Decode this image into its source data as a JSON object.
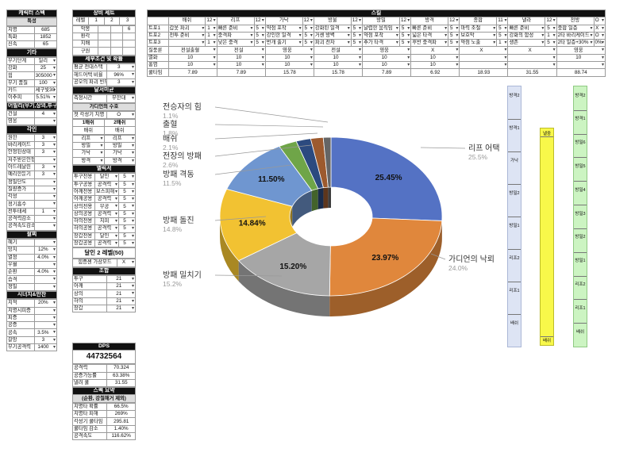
{
  "left": {
    "char_title": "캐릭터 스텍",
    "stat_title": "특성",
    "stats": [
      [
        "치명",
        "685"
      ],
      [
        "특화",
        "1852"
      ],
      [
        "신속",
        "65"
      ]
    ],
    "etc_title": "기타",
    "etc": [
      [
        "무기단계",
        "일리"
      ],
      [
        "강화",
        "25"
      ],
      [
        "힘",
        "305000"
      ],
      [
        "무기 품질",
        "100"
      ],
      [
        "카드",
        "세구빛30"
      ],
      [
        "이추피",
        "5.51%"
      ]
    ],
    "abil_title": "어빌리(무기,상의,투구)",
    "abil": [
      [
        "건설",
        "4"
      ],
      [
        "영웅",
        ""
      ]
    ],
    "engr_title": "각인",
    "engr": [
      [
        "원한",
        "3"
      ],
      [
        "바리케이드",
        "3"
      ],
      [
        "안정된상태",
        "3"
      ],
      [
        "저주받은인형",
        ""
      ],
      [
        "아드레날린",
        "3"
      ],
      [
        "예리한둔기",
        "3"
      ],
      [
        "정밀단도",
        ""
      ],
      [
        "질량증가",
        ""
      ],
      [
        "각성",
        ""
      ],
      [
        "정기흡수",
        ""
      ],
      [
        "전투태세",
        "1"
      ],
      [
        "공격력감소",
        ""
      ],
      [
        "공격속도감소",
        ""
      ]
    ],
    "pal_title": "팔찌",
    "pal": [
      [
        "혜기",
        ""
      ],
      [
        "망치",
        "12%"
      ],
      [
        "열정",
        "4.0%"
      ],
      [
        "우월",
        ""
      ],
      [
        "순환",
        "4.0%"
      ],
      [
        "습격",
        ""
      ],
      [
        "정밀",
        ""
      ]
    ],
    "syn_title": "시너지&만찬",
    "syn": [
      [
        "치적",
        "20%"
      ],
      [
        "치명시피증",
        ""
      ],
      [
        "피증",
        ""
      ],
      [
        "공증",
        ""
      ],
      [
        "공속",
        "3.5%"
      ],
      [
        "갈망",
        "3"
      ],
      [
        "무기공격력",
        "1400"
      ]
    ]
  },
  "gear": {
    "title": "장비 세트",
    "level_label": "레벨",
    "levels": [
      "1",
      "2",
      "3"
    ],
    "rows": [
      [
        "악몽",
        "6"
      ],
      [
        "환각",
        ""
      ],
      [
        "지배",
        ""
      ],
      [
        "구원",
        ""
      ]
    ],
    "cond_title": "세부조건 및 확률",
    "cond": [
      [
        "평균 전대스택",
        "3"
      ],
      [
        "헤드어택 비율",
        "96%"
      ],
      [
        "공오의 파괴 빈도",
        "3"
      ]
    ],
    "dal_title": "달서미균",
    "dal": [
      [
        "측정시간",
        "무한대"
      ]
    ],
    "guardian_title": "가디언의 수호",
    "guardian": [
      [
        "첫 각성기 치명",
        "O"
      ]
    ],
    "mult_header": [
      "1배쉬",
      "2배쉬"
    ],
    "mult_sub": [
      "배쉬",
      "배쉬"
    ],
    "mult_rows": [
      [
        "리프",
        "리프"
      ],
      [
        "방밀",
        "방밀"
      ],
      [
        "가낙",
        "가낙"
      ],
      [
        "방격",
        "방격"
      ]
    ],
    "gem_title": "엘릭서",
    "gems": [
      [
        "투구전용",
        "달인",
        "5"
      ],
      [
        "투구공용",
        "공격력",
        "5"
      ],
      [
        "어깨전용",
        "보스피해",
        "5"
      ],
      [
        "어깨공용",
        "공격력",
        "5"
      ],
      [
        "상의전용",
        "무공",
        "5"
      ],
      [
        "상의공용",
        "공격력",
        "5"
      ],
      [
        "하의전용",
        "치피",
        "5"
      ],
      [
        "하의공용",
        "공격력",
        "5"
      ],
      [
        "장갑전용",
        "달인",
        "5"
      ],
      [
        "장갑공용",
        "공격력",
        "5"
      ]
    ],
    "dal_level": "달인 2 레벨(50)",
    "acc_label": "힘증센 가상모드",
    "acc_value": "X",
    "jo_title": "조합",
    "jo": [
      [
        "투구",
        "21"
      ],
      [
        "어깨",
        "21"
      ],
      [
        "상의",
        "21"
      ],
      [
        "하의",
        "21"
      ],
      [
        "장갑",
        "21"
      ]
    ]
  },
  "dps": {
    "title": "DPS",
    "value": "44732564",
    "rows": [
      [
        "공격력",
        "70.324"
      ],
      [
        "공증가능률",
        "63.38%"
      ],
      [
        "낼려 쿨",
        "31.55"
      ]
    ],
    "summary_title": "스펙 요약",
    "summary_sub": "(순환, 강철해거 제외)",
    "summary": [
      [
        "치명타 확률",
        "66.5%"
      ],
      [
        "치명타 피해",
        "269%"
      ],
      [
        "각성기 쿨타임",
        "295.81"
      ],
      [
        "쿨타임 감소",
        "1.40%"
      ],
      [
        "공격속도",
        "116.62%"
      ]
    ]
  },
  "skill": {
    "title": "스킬",
    "columns": [
      "배쉬",
      "리프",
      "가낙",
      "방울",
      "방밀",
      "방격",
      "종합",
      "낼라",
      "전방"
    ],
    "levels": [
      "12",
      "12",
      "12",
      "12",
      "12",
      "12",
      "11",
      "12",
      "O"
    ],
    "tripods": [
      {
        "label": "트포1",
        "cells": [
          [
            "갑옷 파괴",
            "1"
          ],
          [
            "빠른 준비",
            "5"
          ],
          [
            "약점 포착",
            "5"
          ],
          [
            "강화된 일격",
            "5"
          ],
          [
            "날렵한 움직임",
            "5"
          ],
          [
            "빠른 준비",
            "5"
          ],
          [
            "마력 조절",
            "5"
          ],
          [
            "빠른 준비",
            "5"
          ],
          [
            "충합 일층",
            "X"
          ]
        ]
      },
      {
        "label": "트포2",
        "cells": [
          [
            "전투 준비",
            "1"
          ],
          [
            "충격파",
            "5"
          ],
          [
            "강인한 일격",
            "5"
          ],
          [
            "거센 방벽",
            "5"
          ],
          [
            "약점 포착",
            "5"
          ],
          [
            "넓은 타격",
            "5"
          ],
          [
            "보호막",
            "5"
          ],
          [
            "강화의 함성",
            "1"
          ],
          [
            "2타 바리케이드",
            "O"
          ]
        ]
      },
      {
        "label": "트포3",
        "cells": [
          [
            "",
            "1"
          ],
          [
            "낮은 충격",
            "5"
          ],
          [
            "번개 출기",
            "5"
          ],
          [
            "파괴 전차",
            "5"
          ],
          [
            "추가 타격",
            "5"
          ],
          [
            "후반 충격파",
            "5"
          ],
          [
            "약점 노출",
            "1"
          ],
          [
            "생존",
            "5"
          ],
          [
            "2타 일층+30%",
            "0%"
          ]
        ]
      }
    ],
    "rune_label": "질풍룬",
    "runes": [
      "전설출혈",
      "전설",
      "영웅",
      "전설",
      "영웅",
      "X",
      "X",
      "X",
      "영웅"
    ],
    "gem_label": "멸화",
    "gems": [
      "10",
      "10",
      "10",
      "10",
      "10",
      "10",
      "",
      "",
      "10"
    ],
    "hong_label": "홍염",
    "hongs": [
      "10",
      "10",
      "10",
      "10",
      "10",
      "10",
      "",
      "",
      ""
    ],
    "cd_label": "쿨타임",
    "cds": [
      "7.89",
      "7.89",
      "15.78",
      "15.78",
      "7.89",
      "6.92",
      "18.93",
      "31.55",
      "88.74"
    ]
  },
  "chart_data": {
    "type": "pie",
    "categories": [
      "리프 어택",
      "가디언의 낙뢰",
      "방패 밀치기",
      "방패 돌진",
      "방패 격동",
      "전장의 방패",
      "배쉬",
      "출혈",
      "전승자의 힘"
    ],
    "values": [
      25.5,
      24.0,
      15.2,
      14.8,
      11.5,
      2.6,
      2.1,
      1.8,
      1.1
    ],
    "data_labels": [
      "25.45%",
      "23.97%",
      "15.20%",
      "14.84%",
      "11.50%",
      "",
      "",
      "",
      ""
    ],
    "percent_labels": [
      "25.5%",
      "24.0%",
      "15.2%",
      "14.8%",
      "11.5%",
      "2.6%",
      "2.1%",
      "1.8%",
      "1.1%"
    ],
    "colors": [
      "#5472c4",
      "#e0873c",
      "#a6a6a6",
      "#f2c232",
      "#6f96d0",
      "#6fa548",
      "#2c4a7f",
      "#9d5a2e",
      "#656565"
    ]
  },
  "timeline": {
    "bar1": [
      "방격2",
      "방격1",
      "가낙",
      "방밀2",
      "방밀1",
      "리프2",
      "리프1",
      "배쉬"
    ],
    "bar2_top": "낼중",
    "bar2_bottom": "배쉬",
    "bar3": [
      "방격2",
      "방격1",
      "방밀6",
      "방밀5",
      "방밀4",
      "방밀3",
      "방밀2",
      "방밀1",
      "리프2",
      "리프1",
      "배쉬"
    ]
  }
}
